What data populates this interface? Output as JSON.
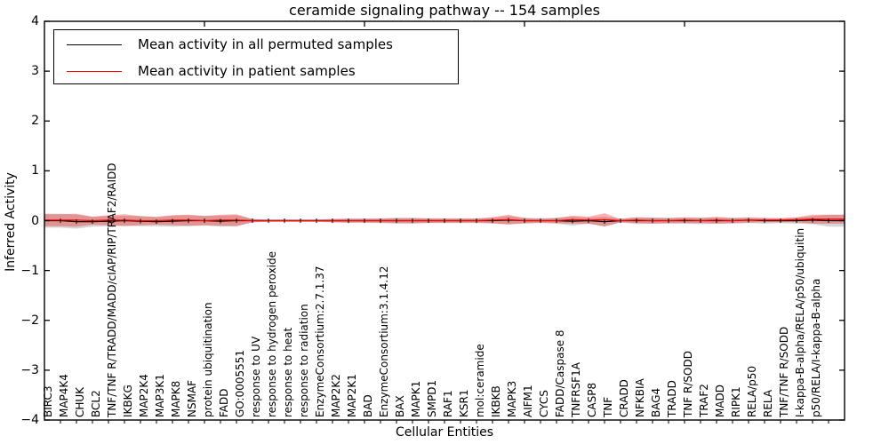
{
  "title": "ceramide signaling pathway -- 154 samples",
  "axes": {
    "x_label": "Cellular Entities",
    "y_label": "Inferred Activity",
    "y_ticks": [
      "4",
      "3",
      "2",
      "1",
      "0",
      "−1",
      "−2",
      "−3",
      "−4"
    ]
  },
  "legend": {
    "items": [
      {
        "label": "Mean activity in all permuted samples",
        "color": "#000000"
      },
      {
        "label": "Mean activity in patient samples",
        "color": "#ff0000"
      }
    ]
  },
  "colors": {
    "permuted_line": "#000000",
    "patient_line": "#ff0000",
    "permuted_band": "rgba(115,115,115,0.30)",
    "patient_band": "rgba(255,0,0,0.30)",
    "axis": "#000000"
  },
  "chart_data": {
    "type": "line",
    "title": "ceramide signaling pathway -- 154 samples",
    "xlabel": "Cellular Entities",
    "ylabel": "Inferred Activity",
    "ylim": [
      -4,
      4
    ],
    "xlim": [
      0,
      50
    ],
    "x_major_ticks": [
      10,
      20,
      30,
      40
    ],
    "grid": false,
    "legend_position": "upper left",
    "categories": [
      "BIRC3",
      "MAP4K4",
      "CHUK",
      "BCL2",
      "TNF/TNF R/TRADD/MADD/cIAP/RIP/TRAF2/RAIDD",
      "IKBKG",
      "MAP2K4",
      "MAP3K1",
      "MAPK8",
      "NSMAF",
      "protein ubiquitination",
      "FADD",
      "GO:0005551",
      "response to UV",
      "response to hydrogen peroxide",
      "response to heat",
      "response to radiation",
      "EnzymeConsortium:2.7.1.37",
      "MAP2K2",
      "MAP2K1",
      "BAD",
      "EnzymeConsortium:3.1.4.12",
      "BAX",
      "MAPK1",
      "SMPD1",
      "RAF1",
      "KSR1",
      "mol:ceramide",
      "IKBKB",
      "MAPK3",
      "AIFM1",
      "CYCS",
      "FADD/Caspase 8",
      "TNFRSF1A",
      "CASP8",
      "TNF",
      "CRADD",
      "NFKBIA",
      "BAG4",
      "TRADD",
      "TNF R/SODD",
      "TRAF2",
      "MADD",
      "RIPK1",
      "RELA/p50",
      "RELA",
      "TNF/TNF R/SODD",
      "I-kappa-B-alpha/RELA/p50/ubiquitin",
      "p50/RELA/I-kappa-B-alpha"
    ],
    "series": [
      {
        "name": "Mean activity in all permuted samples",
        "color": "#000000",
        "values": [
          0,
          -0.02,
          -0.02,
          -0.01,
          0,
          -0.01,
          -0.02,
          -0.01,
          0,
          0,
          -0.01,
          0,
          0,
          0,
          0,
          0,
          0,
          0,
          0,
          0,
          0,
          0,
          0,
          0,
          0,
          0,
          0,
          0,
          0.01,
          0,
          0,
          0,
          -0.01,
          0,
          -0.02,
          0,
          0,
          0,
          0,
          0,
          0,
          0,
          0,
          0.01,
          0,
          0,
          0,
          0.01,
          0
        ],
        "band": [
          0.14,
          0.14,
          0.1,
          0.1,
          0.1,
          0.1,
          0.09,
          0.11,
          0.11,
          0.1,
          0.11,
          0.11,
          0.035,
          0.025,
          0.025,
          0.025,
          0.025,
          0.035,
          0.045,
          0.045,
          0.05,
          0.06,
          0.06,
          0.05,
          0.05,
          0.05,
          0.05,
          0.06,
          0.08,
          0.06,
          0.05,
          0.06,
          0.09,
          0.06,
          0.1,
          0.04,
          0.07,
          0.06,
          0.06,
          0.06,
          0.07,
          0.06,
          0.06,
          0.06,
          0.06,
          0.05,
          0.06,
          0.08,
          0.12
        ]
      },
      {
        "name": "Mean activity in patient samples",
        "color": "#ff0000",
        "values": [
          0.01,
          0.01,
          0,
          0.01,
          0.01,
          0,
          0,
          0.01,
          0.01,
          0,
          0.01,
          0.01,
          0,
          0,
          0,
          0,
          0,
          0,
          0,
          0,
          0,
          0,
          0,
          0,
          0,
          0,
          0,
          0.01,
          0.02,
          0,
          0,
          0,
          0.02,
          0.01,
          0.02,
          0,
          0.01,
          0,
          0,
          0.01,
          0,
          0.01,
          0,
          0.01,
          0.01,
          0.01,
          0.02,
          0.03,
          0.03
        ],
        "band": [
          0.12,
          0.13,
          0.08,
          0.1,
          0.12,
          0.09,
          0.08,
          0.1,
          0.11,
          0.09,
          0.11,
          0.12,
          0.03,
          0.02,
          0.02,
          0.02,
          0.02,
          0.03,
          0.035,
          0.035,
          0.04,
          0.05,
          0.05,
          0.045,
          0.04,
          0.04,
          0.04,
          0.06,
          0.1,
          0.05,
          0.04,
          0.05,
          0.08,
          0.07,
          0.13,
          0.03,
          0.06,
          0.06,
          0.05,
          0.06,
          0.05,
          0.07,
          0.05,
          0.05,
          0.04,
          0.04,
          0.05,
          0.09,
          0.09
        ]
      }
    ]
  }
}
